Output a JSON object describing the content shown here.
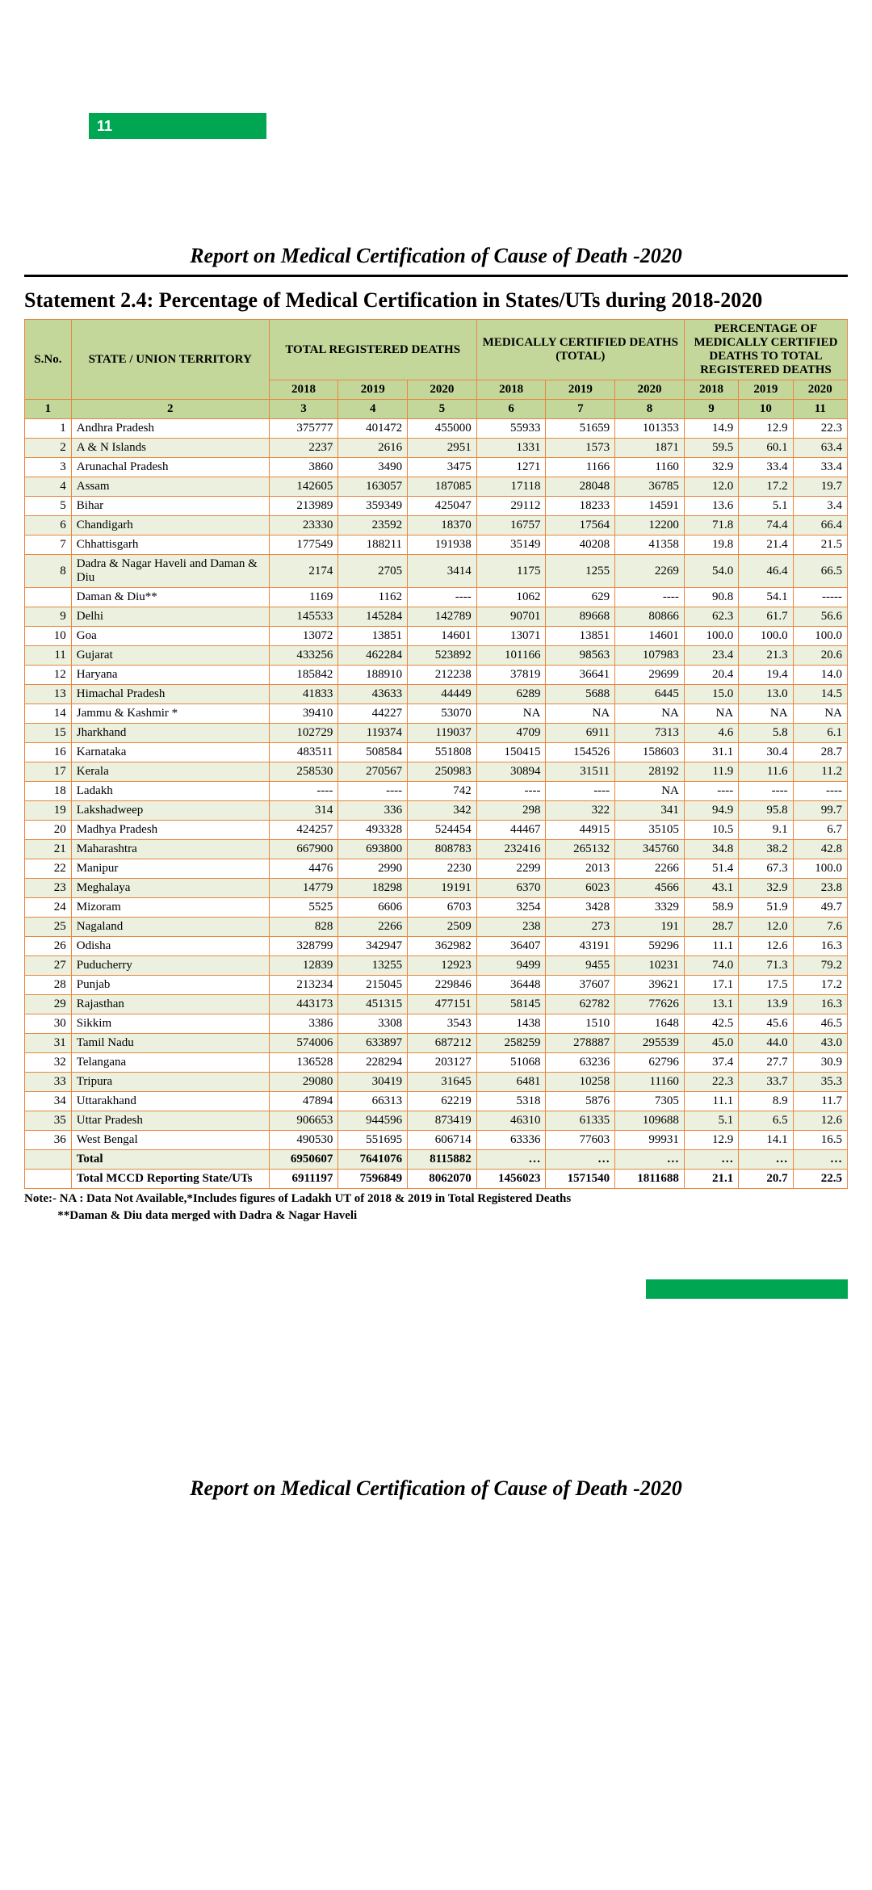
{
  "page_number": "11",
  "report_title": "Report on Medical Certification of Cause of Death -2020",
  "statement_title": "Statement 2.4: Percentage of Medical Certification in States/UTs during 2018-2020",
  "footer_title": "Report on Medical Certification of Cause of Death -2020",
  "note_lines": [
    "Note:- NA : Data Not Available,*Includes figures of Ladakh UT of 2018 & 2019 in Total Registered Deaths",
    "           **Daman & Diu data merged with Dadra & Nagar Haveli"
  ],
  "headers": {
    "group1": "S.No.",
    "group2": "STATE / UNION TERRITORY",
    "group3": "TOTAL REGISTERED DEATHS",
    "group4": "MEDICALLY CERTIFIED DEATHS (TOTAL)",
    "group5": "PERCENTAGE OF MEDICALLY CERTIFIED DEATHS TO TOTAL REGISTERED DEATHS",
    "years": [
      "2018",
      "2019",
      "2020"
    ]
  },
  "col_numbers": [
    "1",
    "2",
    "3",
    "4",
    "5",
    "6",
    "7",
    "8",
    "9",
    "10",
    "11"
  ],
  "col_widths": [
    "40px",
    "200px",
    "70px",
    "70px",
    "70px",
    "70px",
    "70px",
    "70px",
    "55px",
    "55px",
    "55px"
  ],
  "rows": [
    {
      "n": "1",
      "s": "Andhra Pradesh",
      "d": [
        "375777",
        "401472",
        "455000",
        "55933",
        "51659",
        "101353",
        "14.9",
        "12.9",
        "22.3"
      ]
    },
    {
      "n": "2",
      "s": "A & N Islands",
      "d": [
        "2237",
        "2616",
        "2951",
        "1331",
        "1573",
        "1871",
        "59.5",
        "60.1",
        "63.4"
      ]
    },
    {
      "n": "3",
      "s": "Arunachal Pradesh",
      "d": [
        "3860",
        "3490",
        "3475",
        "1271",
        "1166",
        "1160",
        "32.9",
        "33.4",
        "33.4"
      ]
    },
    {
      "n": "4",
      "s": "Assam",
      "d": [
        "142605",
        "163057",
        "187085",
        "17118",
        "28048",
        "36785",
        "12.0",
        "17.2",
        "19.7"
      ]
    },
    {
      "n": "5",
      "s": "Bihar",
      "d": [
        "213989",
        "359349",
        "425047",
        "29112",
        "18233",
        "14591",
        "13.6",
        "5.1",
        "3.4"
      ]
    },
    {
      "n": "6",
      "s": "Chandigarh",
      "d": [
        "23330",
        "23592",
        "18370",
        "16757",
        "17564",
        "12200",
        "71.8",
        "74.4",
        "66.4"
      ]
    },
    {
      "n": "7",
      "s": "Chhattisgarh",
      "d": [
        "177549",
        "188211",
        "191938",
        "35149",
        "40208",
        "41358",
        "19.8",
        "21.4",
        "21.5"
      ]
    },
    {
      "n": "8",
      "s": "Dadra & Nagar Haveli and Daman & Diu",
      "d": [
        "2174",
        "2705",
        "3414",
        "1175",
        "1255",
        "2269",
        "54.0",
        "46.4",
        "66.5"
      ]
    },
    {
      "n": "",
      "s": "Daman & Diu**",
      "d": [
        "1169",
        "1162",
        "----",
        "1062",
        "629",
        "----",
        "90.8",
        "54.1",
        "-----"
      ]
    },
    {
      "n": "9",
      "s": "Delhi",
      "d": [
        "145533",
        "145284",
        "142789",
        "90701",
        "89668",
        "80866",
        "62.3",
        "61.7",
        "56.6"
      ]
    },
    {
      "n": "10",
      "s": "Goa",
      "d": [
        "13072",
        "13851",
        "14601",
        "13071",
        "13851",
        "14601",
        "100.0",
        "100.0",
        "100.0"
      ]
    },
    {
      "n": "11",
      "s": "Gujarat",
      "d": [
        "433256",
        "462284",
        "523892",
        "101166",
        "98563",
        "107983",
        "23.4",
        "21.3",
        "20.6"
      ]
    },
    {
      "n": "12",
      "s": "Haryana",
      "d": [
        "185842",
        "188910",
        "212238",
        "37819",
        "36641",
        "29699",
        "20.4",
        "19.4",
        "14.0"
      ]
    },
    {
      "n": "13",
      "s": "Himachal Pradesh",
      "d": [
        "41833",
        "43633",
        "44449",
        "6289",
        "5688",
        "6445",
        "15.0",
        "13.0",
        "14.5"
      ]
    },
    {
      "n": "14",
      "s": "Jammu & Kashmir *",
      "d": [
        "39410",
        "44227",
        "53070",
        "NA",
        "NA",
        "NA",
        "NA",
        "NA",
        "NA"
      ]
    },
    {
      "n": "15",
      "s": "Jharkhand",
      "d": [
        "102729",
        "119374",
        "119037",
        "4709",
        "6911",
        "7313",
        "4.6",
        "5.8",
        "6.1"
      ]
    },
    {
      "n": "16",
      "s": "Karnataka",
      "d": [
        "483511",
        "508584",
        "551808",
        "150415",
        "154526",
        "158603",
        "31.1",
        "30.4",
        "28.7"
      ]
    },
    {
      "n": "17",
      "s": "Kerala",
      "d": [
        "258530",
        "270567",
        "250983",
        "30894",
        "31511",
        "28192",
        "11.9",
        "11.6",
        "11.2"
      ]
    },
    {
      "n": "18",
      "s": "Ladakh",
      "d": [
        "----",
        "----",
        "742",
        "----",
        "----",
        "NA",
        "----",
        "----",
        "----"
      ]
    },
    {
      "n": "19",
      "s": "Lakshadweep",
      "d": [
        "314",
        "336",
        "342",
        "298",
        "322",
        "341",
        "94.9",
        "95.8",
        "99.7"
      ]
    },
    {
      "n": "20",
      "s": "Madhya Pradesh",
      "d": [
        "424257",
        "493328",
        "524454",
        "44467",
        "44915",
        "35105",
        "10.5",
        "9.1",
        "6.7"
      ]
    },
    {
      "n": "21",
      "s": "Maharashtra",
      "d": [
        "667900",
        "693800",
        "808783",
        "232416",
        "265132",
        "345760",
        "34.8",
        "38.2",
        "42.8"
      ]
    },
    {
      "n": "22",
      "s": "Manipur",
      "d": [
        "4476",
        "2990",
        "2230",
        "2299",
        "2013",
        "2266",
        "51.4",
        "67.3",
        "100.0"
      ]
    },
    {
      "n": "23",
      "s": "Meghalaya",
      "d": [
        "14779",
        "18298",
        "19191",
        "6370",
        "6023",
        "4566",
        "43.1",
        "32.9",
        "23.8"
      ]
    },
    {
      "n": "24",
      "s": "Mizoram",
      "d": [
        "5525",
        "6606",
        "6703",
        "3254",
        "3428",
        "3329",
        "58.9",
        "51.9",
        "49.7"
      ]
    },
    {
      "n": "25",
      "s": "Nagaland",
      "d": [
        "828",
        "2266",
        "2509",
        "238",
        "273",
        "191",
        "28.7",
        "12.0",
        "7.6"
      ]
    },
    {
      "n": "26",
      "s": "Odisha",
      "d": [
        "328799",
        "342947",
        "362982",
        "36407",
        "43191",
        "59296",
        "11.1",
        "12.6",
        "16.3"
      ]
    },
    {
      "n": "27",
      "s": "Puducherry",
      "d": [
        "12839",
        "13255",
        "12923",
        "9499",
        "9455",
        "10231",
        "74.0",
        "71.3",
        "79.2"
      ]
    },
    {
      "n": "28",
      "s": "Punjab",
      "d": [
        "213234",
        "215045",
        "229846",
        "36448",
        "37607",
        "39621",
        "17.1",
        "17.5",
        "17.2"
      ]
    },
    {
      "n": "29",
      "s": "Rajasthan",
      "d": [
        "443173",
        "451315",
        "477151",
        "58145",
        "62782",
        "77626",
        "13.1",
        "13.9",
        "16.3"
      ]
    },
    {
      "n": "30",
      "s": "Sikkim",
      "d": [
        "3386",
        "3308",
        "3543",
        "1438",
        "1510",
        "1648",
        "42.5",
        "45.6",
        "46.5"
      ]
    },
    {
      "n": "31",
      "s": "Tamil Nadu",
      "d": [
        "574006",
        "633897",
        "687212",
        "258259",
        "278887",
        "295539",
        "45.0",
        "44.0",
        "43.0"
      ]
    },
    {
      "n": "32",
      "s": "Telangana",
      "d": [
        "136528",
        "228294",
        "203127",
        "51068",
        "63236",
        "62796",
        "37.4",
        "27.7",
        "30.9"
      ]
    },
    {
      "n": "33",
      "s": "Tripura",
      "d": [
        "29080",
        "30419",
        "31645",
        "6481",
        "10258",
        "11160",
        "22.3",
        "33.7",
        "35.3"
      ]
    },
    {
      "n": "34",
      "s": "Uttarakhand",
      "d": [
        "47894",
        "66313",
        "62219",
        "5318",
        "5876",
        "7305",
        "11.1",
        "8.9",
        "11.7"
      ]
    },
    {
      "n": "35",
      "s": "Uttar Pradesh",
      "d": [
        "906653",
        "944596",
        "873419",
        "46310",
        "61335",
        "109688",
        "5.1",
        "6.5",
        "12.6"
      ]
    },
    {
      "n": "36",
      "s": "West Bengal",
      "d": [
        "490530",
        "551695",
        "606714",
        "63336",
        "77603",
        "99931",
        "12.9",
        "14.1",
        "16.5"
      ]
    },
    {
      "n": "",
      "s": "Total",
      "d": [
        "6950607",
        "7641076",
        "8115882",
        "…",
        "…",
        "…",
        "…",
        "…",
        "…"
      ],
      "bold": true
    },
    {
      "n": "",
      "s": "Total MCCD Reporting State/UTs",
      "d": [
        "6911197",
        "7596849",
        "8062070",
        "1456023",
        "1571540",
        "1811688",
        "21.1",
        "20.7",
        "22.5"
      ],
      "bold": true
    }
  ],
  "colors": {
    "green": "#00a651",
    "header_bg": "#c4d79b",
    "alt_bg": "#ebf1de",
    "border": "#e9853e"
  }
}
